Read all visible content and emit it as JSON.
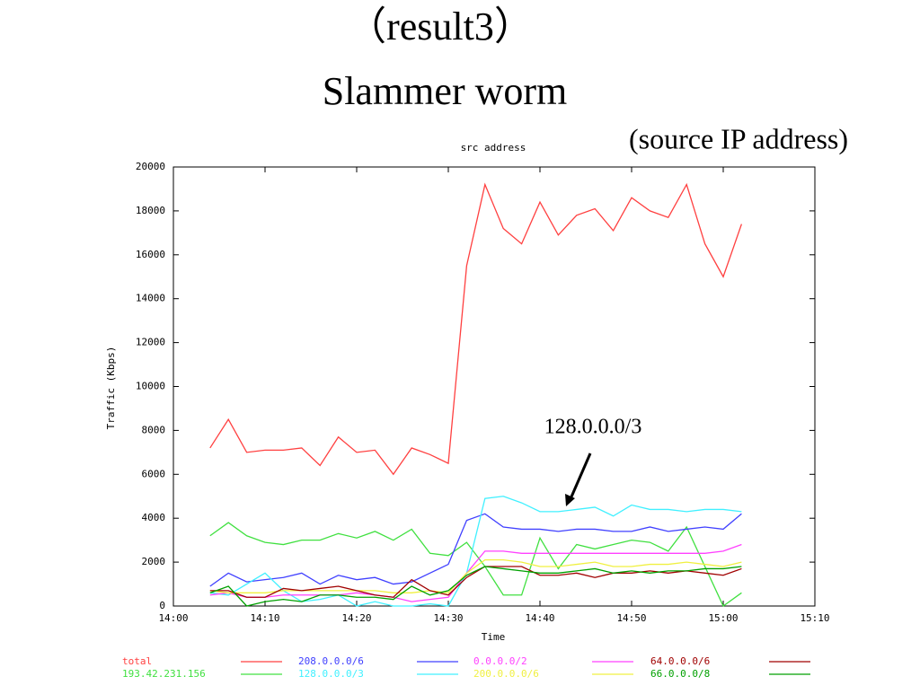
{
  "slide": {
    "title_lines": [
      "（result3）",
      "Slammer worm"
    ],
    "note": "(source IP address)"
  },
  "chart_data": {
    "type": "line",
    "title": "src address",
    "xlabel": "Time",
    "ylabel": "Traffic (Kbps)",
    "annotation": "128.0.0.0/3",
    "x": [
      "14:04",
      "14:06",
      "14:08",
      "14:10",
      "14:12",
      "14:14",
      "14:16",
      "14:18",
      "14:20",
      "14:22",
      "14:24",
      "14:26",
      "14:28",
      "14:30",
      "14:32",
      "14:34",
      "14:36",
      "14:38",
      "14:40",
      "14:42",
      "14:44",
      "14:46",
      "14:48",
      "14:50",
      "14:52",
      "14:54",
      "14:56",
      "14:58",
      "15:00",
      "15:02"
    ],
    "xlim": [
      "14:00",
      "15:10"
    ],
    "xticks": [
      "14:00",
      "14:10",
      "14:20",
      "14:30",
      "14:40",
      "14:50",
      "15:00",
      "15:10"
    ],
    "ylim": [
      0,
      20000
    ],
    "yticks": [
      0,
      2000,
      4000,
      6000,
      8000,
      10000,
      12000,
      14000,
      16000,
      18000,
      20000
    ],
    "series": [
      {
        "name": "total",
        "color": "#ff4040",
        "values": [
          7200,
          8500,
          7000,
          7100,
          7100,
          7200,
          6400,
          7700,
          7000,
          7100,
          6000,
          7200,
          6900,
          6500,
          15500,
          19200,
          17200,
          16500,
          18400,
          16900,
          17800,
          18100,
          17100,
          18600,
          18000,
          17700,
          19200,
          16500,
          15000,
          17400
        ]
      },
      {
        "name": "193.42.231.156",
        "color": "#40e040",
        "values": [
          3200,
          3800,
          3200,
          2900,
          2800,
          3000,
          3000,
          3300,
          3100,
          3400,
          3000,
          3500,
          2400,
          2300,
          2900,
          1800,
          500,
          500,
          3100,
          1700,
          2800,
          2600,
          2800,
          3000,
          2900,
          2500,
          3600,
          1800,
          0,
          600
        ]
      },
      {
        "name": "208.0.0.0/6",
        "color": "#4040ff",
        "values": [
          900,
          1500,
          1100,
          1200,
          1300,
          1500,
          1000,
          1400,
          1200,
          1300,
          1000,
          1100,
          1500,
          1900,
          3900,
          4200,
          3600,
          3500,
          3500,
          3400,
          3500,
          3500,
          3400,
          3400,
          3600,
          3400,
          3500,
          3600,
          3500,
          4200
        ]
      },
      {
        "name": "128.0.0.0/3",
        "color": "#40f0ff",
        "values": [
          600,
          500,
          1000,
          1500,
          700,
          200,
          300,
          500,
          0,
          200,
          0,
          0,
          100,
          0,
          1500,
          4900,
          5000,
          4700,
          4300,
          4300,
          4400,
          4500,
          4100,
          4600,
          4400,
          4400,
          4300,
          4400,
          4400,
          4300
        ]
      },
      {
        "name": "0.0.0.0/2",
        "color": "#ff40ff",
        "values": [
          500,
          600,
          400,
          400,
          500,
          500,
          500,
          500,
          600,
          500,
          400,
          200,
          300,
          400,
          1500,
          2500,
          2500,
          2400,
          2400,
          2400,
          2400,
          2400,
          2400,
          2400,
          2400,
          2400,
          2400,
          2400,
          2500,
          2800
        ]
      },
      {
        "name": "200.0.0.0/6",
        "color": "#f0f040",
        "values": [
          700,
          600,
          600,
          600,
          700,
          700,
          700,
          700,
          700,
          700,
          600,
          600,
          700,
          600,
          1500,
          2100,
          2100,
          2000,
          1800,
          1800,
          1900,
          2000,
          1800,
          1800,
          1900,
          1900,
          2000,
          1900,
          1800,
          2000
        ]
      },
      {
        "name": "64.0.0.0/6",
        "color": "#a00000",
        "values": [
          700,
          700,
          400,
          400,
          800,
          700,
          800,
          900,
          700,
          500,
          400,
          1200,
          700,
          500,
          1300,
          1800,
          1800,
          1800,
          1400,
          1400,
          1500,
          1300,
          1500,
          1500,
          1600,
          1500,
          1600,
          1500,
          1400,
          1700
        ]
      },
      {
        "name": "66.0.0.0/8",
        "color": "#00a000",
        "values": [
          600,
          900,
          0,
          200,
          300,
          200,
          500,
          500,
          400,
          400,
          300,
          900,
          500,
          700,
          1400,
          1800,
          1700,
          1600,
          1500,
          1500,
          1600,
          1700,
          1500,
          1600,
          1500,
          1600,
          1600,
          1700,
          1700,
          1800
        ]
      }
    ]
  }
}
